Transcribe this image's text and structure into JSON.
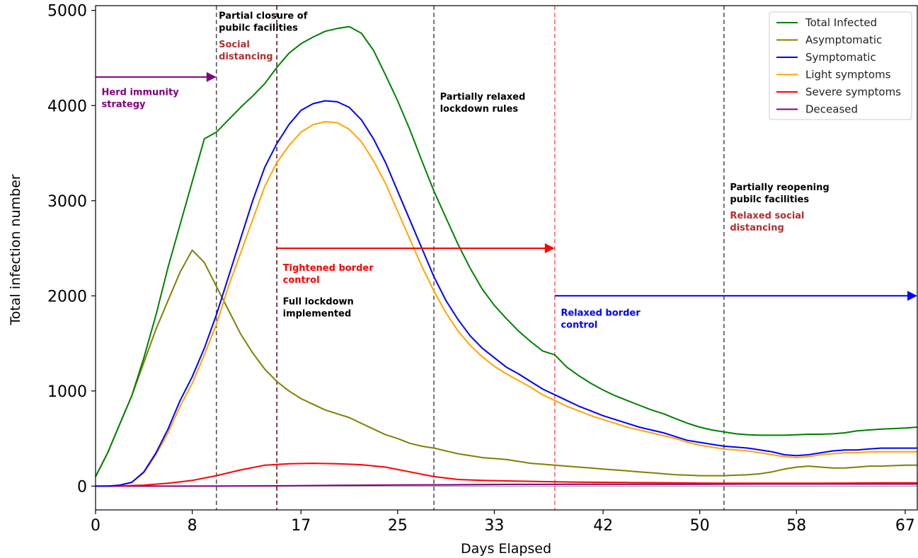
{
  "chart_data": {
    "type": "line",
    "title": "",
    "xlabel": "Days Elapsed",
    "ylabel": "Total infection number",
    "xlim": [
      0,
      68
    ],
    "ylim": [
      -250,
      5050
    ],
    "xticks": [
      0,
      8,
      17,
      25,
      33,
      42,
      50,
      58,
      67
    ],
    "xtick_labels": [
      "0",
      "8",
      "17",
      "25",
      "33",
      "42",
      "50",
      "58",
      "67"
    ],
    "yticks": [
      0,
      1000,
      2000,
      3000,
      4000,
      5000
    ],
    "ytick_labels": [
      "0",
      "1000",
      "2000",
      "3000",
      "4000",
      "5000"
    ],
    "grid": false,
    "legend_position": "top-right",
    "series": [
      {
        "name": "Total Infected",
        "color": "#008000",
        "x": [
          0,
          1,
          2,
          3,
          4,
          5,
          6,
          7,
          8,
          9,
          10,
          11,
          12,
          13,
          14,
          15,
          16,
          17,
          18,
          19,
          20,
          21,
          22,
          23,
          24,
          25,
          26,
          27,
          28,
          29,
          30,
          31,
          32,
          33,
          34,
          35,
          36,
          37,
          38,
          39,
          40,
          41,
          42,
          43,
          44,
          45,
          46,
          47,
          48,
          49,
          50,
          51,
          52,
          53,
          54,
          55,
          56,
          57,
          58,
          59,
          60,
          61,
          62,
          63,
          64,
          65,
          66,
          67,
          68
        ],
        "values": [
          100,
          350,
          650,
          950,
          1350,
          1800,
          2300,
          2750,
          3200,
          3650,
          3720,
          3850,
          3980,
          4100,
          4230,
          4400,
          4550,
          4650,
          4720,
          4780,
          4810,
          4830,
          4760,
          4580,
          4320,
          4050,
          3750,
          3420,
          3100,
          2820,
          2540,
          2290,
          2070,
          1900,
          1760,
          1630,
          1520,
          1420,
          1380,
          1250,
          1160,
          1080,
          1010,
          950,
          900,
          850,
          800,
          760,
          710,
          660,
          620,
          590,
          570,
          550,
          540,
          535,
          535,
          535,
          540,
          545,
          545,
          550,
          560,
          580,
          590,
          600,
          605,
          610,
          620
        ]
      },
      {
        "name": "Asymptomatic",
        "color": "#808000",
        "x": [
          0,
          1,
          2,
          3,
          4,
          5,
          6,
          7,
          8,
          9,
          10,
          11,
          12,
          13,
          14,
          15,
          16,
          17,
          18,
          19,
          20,
          21,
          22,
          23,
          24,
          25,
          26,
          27,
          28,
          29,
          30,
          31,
          32,
          33,
          34,
          35,
          36,
          37,
          38,
          39,
          40,
          41,
          42,
          43,
          44,
          45,
          46,
          47,
          48,
          49,
          50,
          51,
          52,
          53,
          54,
          55,
          56,
          57,
          58,
          59,
          60,
          61,
          62,
          63,
          64,
          65,
          66,
          67,
          68
        ],
        "values": [
          100,
          350,
          650,
          950,
          1300,
          1650,
          1950,
          2250,
          2480,
          2350,
          2100,
          1850,
          1600,
          1400,
          1230,
          1100,
          1000,
          920,
          860,
          800,
          760,
          720,
          660,
          600,
          540,
          500,
          450,
          420,
          400,
          370,
          340,
          320,
          300,
          290,
          280,
          260,
          240,
          230,
          220,
          210,
          200,
          190,
          180,
          170,
          160,
          150,
          140,
          130,
          120,
          115,
          110,
          110,
          110,
          115,
          120,
          130,
          150,
          180,
          200,
          210,
          200,
          190,
          190,
          200,
          210,
          210,
          215,
          220,
          220
        ]
      },
      {
        "name": "Symptomatic",
        "color": "#0000ff",
        "x": [
          0,
          1,
          2,
          3,
          4,
          5,
          6,
          7,
          8,
          9,
          10,
          11,
          12,
          13,
          14,
          15,
          16,
          17,
          18,
          19,
          20,
          21,
          22,
          23,
          24,
          25,
          26,
          27,
          28,
          29,
          30,
          31,
          32,
          33,
          34,
          35,
          36,
          37,
          38,
          39,
          40,
          41,
          42,
          43,
          44,
          45,
          46,
          47,
          48,
          49,
          50,
          51,
          52,
          53,
          54,
          55,
          56,
          57,
          58,
          59,
          60,
          61,
          62,
          63,
          64,
          65,
          66,
          67,
          68
        ],
        "values": [
          0,
          0,
          10,
          40,
          150,
          350,
          600,
          900,
          1150,
          1450,
          1800,
          2200,
          2600,
          3000,
          3350,
          3600,
          3800,
          3950,
          4020,
          4050,
          4040,
          3980,
          3850,
          3650,
          3400,
          3100,
          2800,
          2500,
          2200,
          1950,
          1750,
          1580,
          1450,
          1350,
          1250,
          1180,
          1100,
          1020,
          960,
          900,
          840,
          790,
          740,
          700,
          660,
          620,
          590,
          560,
          520,
          480,
          460,
          440,
          420,
          410,
          400,
          380,
          360,
          330,
          320,
          330,
          350,
          370,
          380,
          380,
          390,
          400,
          400,
          400,
          400
        ]
      },
      {
        "name": "Light symptoms",
        "color": "#ffa500",
        "x": [
          0,
          1,
          2,
          3,
          4,
          5,
          6,
          7,
          8,
          9,
          10,
          11,
          12,
          13,
          14,
          15,
          16,
          17,
          18,
          19,
          20,
          21,
          22,
          23,
          24,
          25,
          26,
          27,
          28,
          29,
          30,
          31,
          32,
          33,
          34,
          35,
          36,
          37,
          38,
          39,
          40,
          41,
          42,
          43,
          44,
          45,
          46,
          47,
          48,
          49,
          50,
          51,
          52,
          53,
          54,
          55,
          56,
          57,
          58,
          59,
          60,
          61,
          62,
          63,
          64,
          65,
          66,
          67,
          68
        ],
        "values": [
          0,
          0,
          10,
          40,
          140,
          330,
          560,
          840,
          1080,
          1380,
          1700,
          2100,
          2450,
          2800,
          3150,
          3400,
          3580,
          3720,
          3800,
          3830,
          3820,
          3750,
          3620,
          3420,
          3180,
          2890,
          2600,
          2310,
          2050,
          1820,
          1630,
          1480,
          1360,
          1260,
          1180,
          1110,
          1040,
          960,
          900,
          840,
          790,
          740,
          700,
          660,
          620,
          590,
          560,
          530,
          500,
          460,
          430,
          410,
          390,
          380,
          370,
          350,
          330,
          310,
          300,
          310,
          330,
          340,
          350,
          350,
          360,
          360,
          360,
          360,
          360
        ]
      },
      {
        "name": "Severe symptoms",
        "color": "#ff0000",
        "x": [
          0,
          2,
          4,
          6,
          8,
          10,
          12,
          14,
          16,
          18,
          20,
          22,
          24,
          26,
          28,
          30,
          32,
          34,
          36,
          38,
          40,
          42,
          44,
          46,
          48,
          50,
          52,
          54,
          56,
          58,
          60,
          62,
          64,
          66,
          68
        ],
        "values": [
          0,
          2,
          10,
          30,
          60,
          110,
          170,
          220,
          235,
          240,
          235,
          225,
          200,
          150,
          100,
          70,
          60,
          55,
          50,
          45,
          42,
          40,
          38,
          36,
          34,
          32,
          30,
          30,
          30,
          30,
          30,
          32,
          33,
          35,
          35
        ]
      },
      {
        "name": "Deceased",
        "color": "#800080",
        "x": [
          0,
          5,
          10,
          15,
          20,
          25,
          30,
          35,
          40,
          45,
          50,
          55,
          60,
          65,
          68
        ],
        "values": [
          0,
          0,
          1,
          3,
          8,
          12,
          15,
          18,
          20,
          20,
          20,
          22,
          22,
          22,
          22
        ]
      }
    ],
    "vertical_lines": [
      {
        "x": 10,
        "color": "#555555"
      },
      {
        "x": 15,
        "color": "#5a1a1a"
      },
      {
        "x": 28,
        "color": "#555555"
      },
      {
        "x": 38,
        "color": "#ff6666"
      },
      {
        "x": 52,
        "color": "#555555"
      }
    ],
    "arrows": [
      {
        "x1": 0,
        "x2": 10,
        "y": 4300,
        "color": "#800080"
      },
      {
        "x1": 15,
        "x2": 38,
        "y": 2500,
        "color": "#ff0000"
      },
      {
        "x1": 38,
        "x2": 68,
        "y": 2000,
        "color": "#0000ff"
      }
    ],
    "annotations": [
      {
        "lines": [
          "Herd immunity",
          "strategy"
        ],
        "color": "#800080",
        "x": 0.5,
        "y": 4200
      },
      {
        "lines": [
          "Partial closure of",
          "pubilc facilities"
        ],
        "color": "#000000",
        "x": 10.2,
        "y": 5000
      },
      {
        "lines": [
          "Social",
          "distancing"
        ],
        "color": "#b03030",
        "x": 10.2,
        "y": 4700
      },
      {
        "lines": [
          "Partially relaxed",
          "lockdown rules"
        ],
        "color": "#000000",
        "x": 28.5,
        "y": 4150
      },
      {
        "lines": [
          "Tightened border",
          "control"
        ],
        "color": "#ff0000",
        "x": 15.5,
        "y": 2350
      },
      {
        "lines": [
          "Full lockdown",
          "implemented"
        ],
        "color": "#000000",
        "x": 15.5,
        "y": 2000
      },
      {
        "lines": [
          "Relaxed border",
          "control"
        ],
        "color": "#0000ff",
        "x": 38.5,
        "y": 1880
      },
      {
        "lines": [
          "Partially reopening",
          "pubilc facilities"
        ],
        "color": "#000000",
        "x": 52.5,
        "y": 3200
      },
      {
        "lines": [
          "Relaxed social",
          "distancing"
        ],
        "color": "#b03030",
        "x": 52.5,
        "y": 2900
      }
    ]
  }
}
